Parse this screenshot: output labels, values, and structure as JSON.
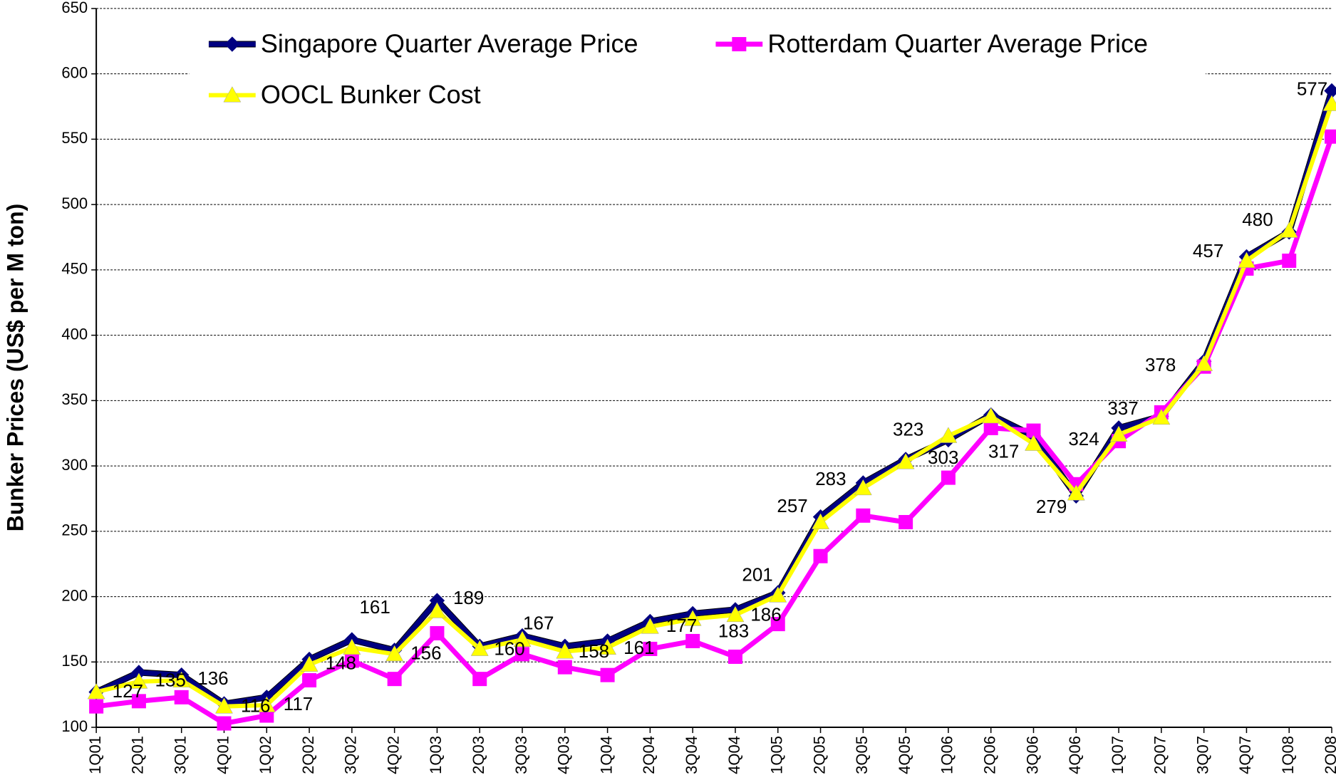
{
  "chart_data": {
    "type": "line",
    "y_axis_label": "Bunker Prices (US$ per M ton)",
    "categories": [
      "1Q01",
      "2Q01",
      "3Q01",
      "4Q01",
      "1Q02",
      "2Q02",
      "3Q02",
      "4Q02",
      "1Q03",
      "2Q03",
      "3Q03",
      "4Q03",
      "1Q04",
      "2Q04",
      "3Q04",
      "4Q04",
      "1Q05",
      "2Q05",
      "3Q05",
      "4Q05",
      "1Q06",
      "2Q06",
      "3Q06",
      "4Q06",
      "1Q07",
      "2Q07",
      "3Q07",
      "4Q07",
      "1Q08",
      "2Q08"
    ],
    "ylim": [
      100,
      650
    ],
    "yticks": [
      100,
      150,
      200,
      250,
      300,
      350,
      400,
      450,
      500,
      550,
      600,
      650
    ],
    "grid": true,
    "legend": "top",
    "series": [
      {
        "name": "Singapore Quarter Average Price",
        "color": "#000080",
        "marker": "diamond",
        "values": [
          127,
          142,
          140,
          118,
          123,
          152,
          167,
          159,
          197,
          162,
          170,
          162,
          166,
          181,
          187,
          190,
          203,
          261,
          287,
          305,
          320,
          339,
          323,
          277,
          329,
          338,
          380,
          460,
          479,
          587
        ]
      },
      {
        "name": "Rotterdam Quarter Average Price",
        "color": "#ff00ff",
        "marker": "square",
        "values": [
          116,
          120,
          123,
          103,
          109,
          136,
          151,
          137,
          172,
          137,
          156,
          146,
          140,
          160,
          166,
          154,
          179,
          231,
          262,
          257,
          291,
          329,
          327,
          286,
          319,
          341,
          376,
          451,
          457,
          552
        ]
      },
      {
        "name": "OOCL Bunker Cost",
        "color": "#ffff00",
        "marker": "triangle",
        "values": [
          127,
          135,
          136,
          116,
          117,
          148,
          161,
          156,
          189,
          160,
          167,
          158,
          161,
          177,
          183,
          186,
          201,
          257,
          283,
          303,
          323,
          338,
          317,
          279,
          324,
          337,
          378,
          457,
          480,
          577
        ],
        "value_labels": [
          "127",
          "135",
          "136",
          "116",
          "117",
          "148",
          "161",
          "156",
          "189",
          "160",
          "167",
          "158",
          "161",
          "177",
          "183",
          "186",
          "201",
          "257",
          "283",
          "303",
          "323",
          null,
          "317",
          "279",
          "324",
          "337",
          "378",
          "457",
          "480",
          "577"
        ]
      }
    ]
  }
}
